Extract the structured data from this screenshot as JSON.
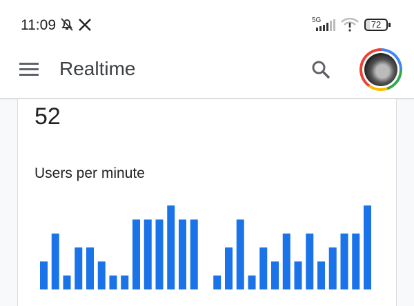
{
  "status_bar": {
    "time": "11:09",
    "network": "5G",
    "battery": "72",
    "icons": [
      "bell-off-icon",
      "x-logo-icon",
      "signal-icon",
      "wifi-alert-icon",
      "battery-icon"
    ]
  },
  "app_bar": {
    "title": "Realtime",
    "icons": [
      "menu-icon",
      "search-icon",
      "avatar"
    ]
  },
  "card": {
    "count": "52",
    "chart_label": "Users per minute"
  },
  "colors": {
    "bar": "#1a73e8"
  },
  "chart_data": {
    "type": "bar",
    "values": [
      2,
      4,
      1,
      3,
      3,
      2,
      1,
      1,
      5,
      5,
      5,
      6,
      5,
      5,
      0,
      1,
      3,
      5,
      1,
      3,
      2,
      4,
      2,
      4,
      2,
      3,
      4,
      4,
      6
    ],
    "title": "Users per minute",
    "ylim": [
      0,
      6
    ]
  }
}
